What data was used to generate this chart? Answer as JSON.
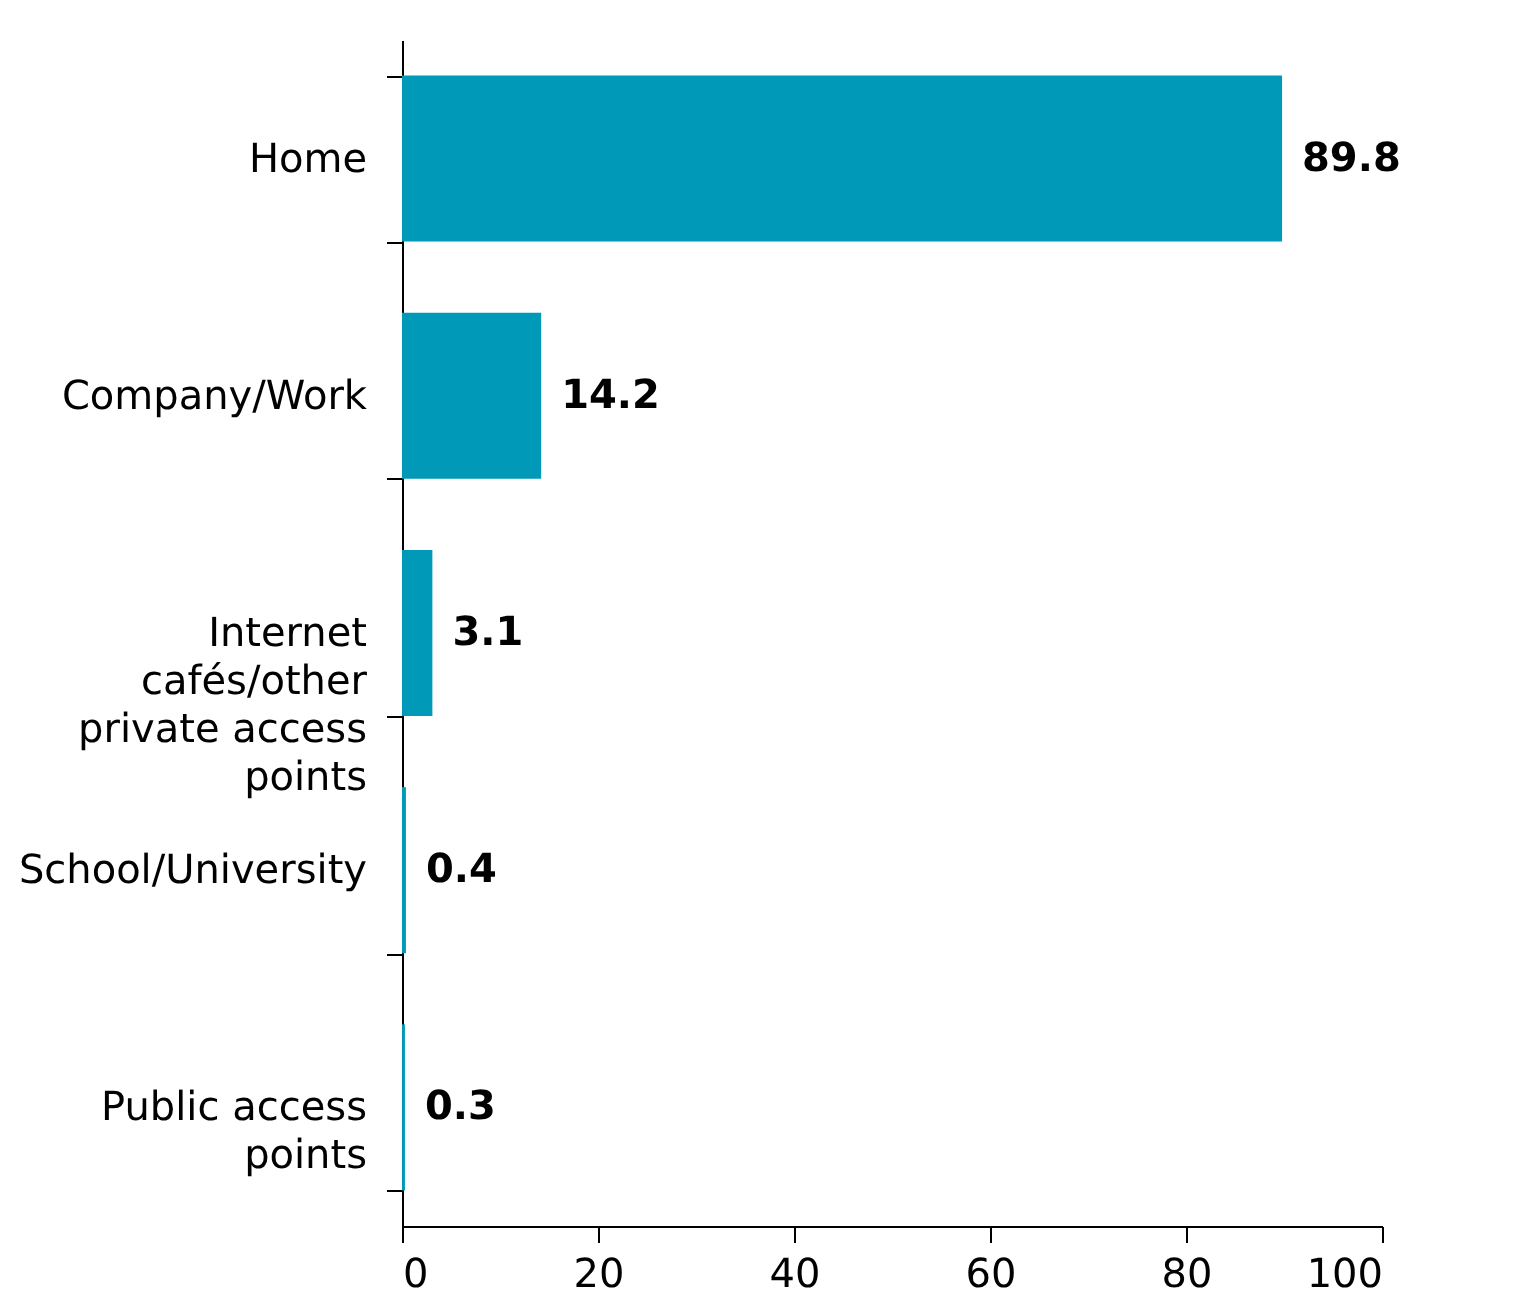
{
  "chart_data": {
    "type": "bar",
    "orientation": "horizontal",
    "categories": [
      "Home",
      "Company/Work",
      "Internet cafés/other private access points",
      "School/University",
      "Public access points"
    ],
    "values": [
      89.8,
      14.2,
      3.1,
      0.4,
      0.3
    ],
    "color": "#0099b8",
    "xlim": [
      0,
      100
    ],
    "xticks": [
      0,
      20,
      40,
      60,
      80,
      100
    ],
    "data_labels": true,
    "grid": false
  }
}
